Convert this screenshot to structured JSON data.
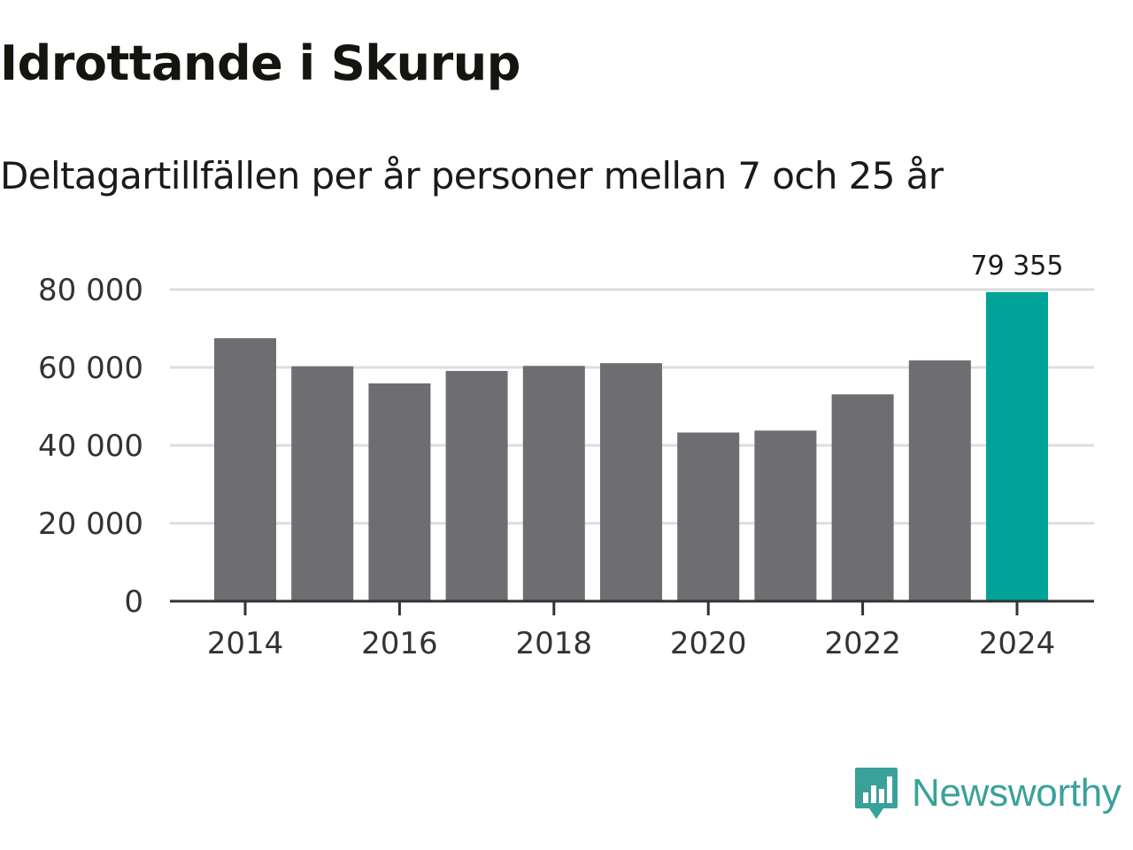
{
  "header": {
    "title": "Idrottande i Skurup",
    "subtitle": "Deltagartillfällen per år personer mellan 7 och 25 år"
  },
  "brand": {
    "name": "Newsworthy",
    "icon": "newsworthy-logo-icon",
    "color": "#3aa19a"
  },
  "chart_data": {
    "type": "bar",
    "title": "Idrottande i Skurup",
    "subtitle": "Deltagartillfällen per år personer mellan 7 och 25 år",
    "xlabel": "",
    "ylabel": "",
    "categories": [
      "2014",
      "2015",
      "2016",
      "2017",
      "2018",
      "2019",
      "2020",
      "2021",
      "2022",
      "2023",
      "2024"
    ],
    "values": [
      67500,
      60300,
      55900,
      59100,
      60400,
      61100,
      43300,
      43800,
      53100,
      61800,
      79355
    ],
    "x_tick_labels": [
      "2014",
      "2016",
      "2018",
      "2020",
      "2022",
      "2024"
    ],
    "y_ticks": [
      0,
      20000,
      40000,
      60000,
      80000
    ],
    "y_tick_labels": [
      "0",
      "20 000",
      "40 000",
      "60 000",
      "80 000"
    ],
    "ylim": [
      0,
      80000
    ],
    "grid": true,
    "highlight_index": 10,
    "data_labels": [
      {
        "index": 10,
        "text": "79 355"
      }
    ],
    "colors": {
      "bar": "#6e6d72",
      "highlight": "#00a397",
      "grid": "#dddddd",
      "axis": "#333333"
    }
  }
}
